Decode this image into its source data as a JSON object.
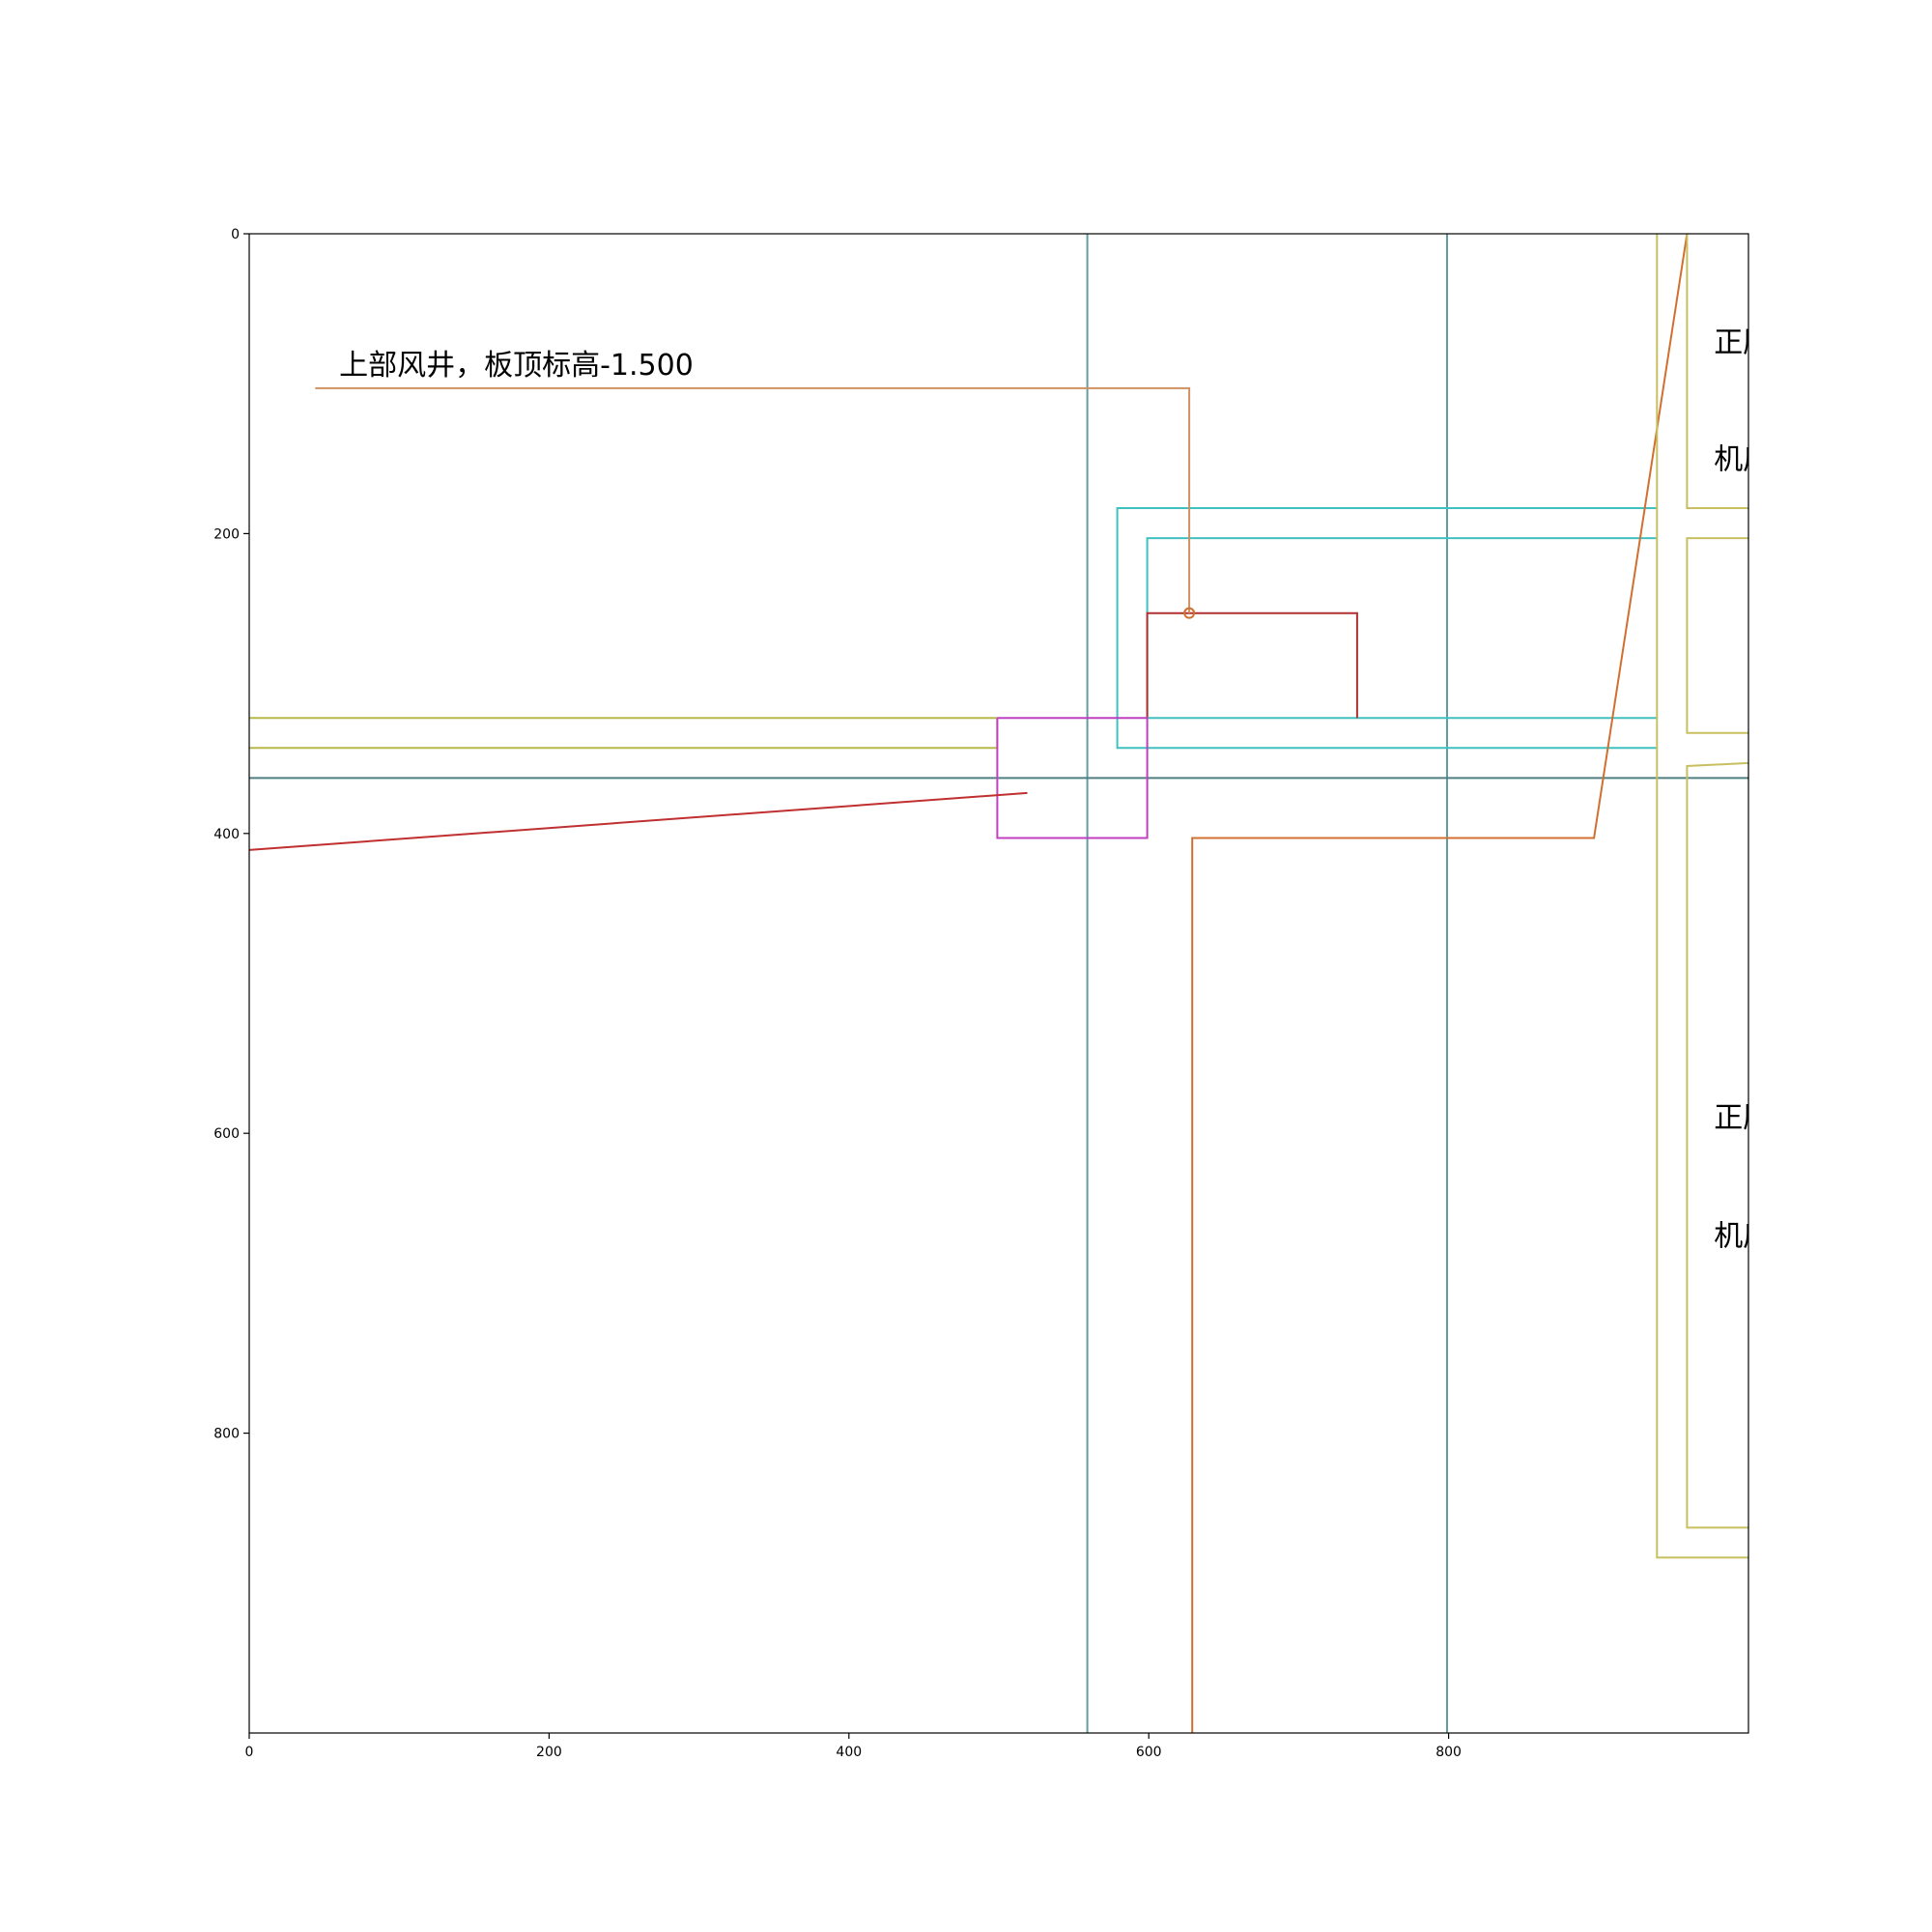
{
  "chart_data": {
    "type": "cad-drawing",
    "xlim": [
      0,
      1000
    ],
    "ylim": [
      1000,
      0
    ],
    "x_ticks": [
      {
        "value": 0,
        "label": "0"
      },
      {
        "value": 200,
        "label": "200"
      },
      {
        "value": 400,
        "label": "400"
      },
      {
        "value": 600,
        "label": "600"
      },
      {
        "value": 800,
        "label": "800"
      }
    ],
    "y_ticks": [
      {
        "value": 0,
        "label": "0"
      },
      {
        "value": 200,
        "label": "200"
      },
      {
        "value": 400,
        "label": "400"
      },
      {
        "value": 600,
        "label": "600"
      },
      {
        "value": 800,
        "label": "800"
      }
    ],
    "annotations": [
      {
        "name": "annotation-shaft-elevation",
        "text": "上部风井，板顶标高-1.500",
        "x": 60,
        "y": 80
      },
      {
        "name": "annotation-room-upper-1",
        "text": "正压送风机房",
        "x": 977,
        "y": 65
      },
      {
        "name": "annotation-room-upper-2",
        "text": "机房",
        "x": 977,
        "y": 143
      },
      {
        "name": "annotation-room-lower-1",
        "text": "正压送风机房",
        "x": 977,
        "y": 582
      },
      {
        "name": "annotation-room-lower-2",
        "text": "机房",
        "x": 977,
        "y": 661
      }
    ],
    "lines": [
      {
        "name": "grid-line-vertical-a",
        "color": "#5f9ea0",
        "points": [
          [
            559,
            0
          ],
          [
            559,
            1000
          ]
        ]
      },
      {
        "name": "grid-line-vertical-b",
        "color": "#5f9ea0",
        "points": [
          [
            799,
            0
          ],
          [
            799,
            1000
          ]
        ]
      },
      {
        "name": "grid-line-horizontal",
        "color": "#4f7f80",
        "points": [
          [
            0,
            363
          ],
          [
            1000,
            363
          ]
        ]
      },
      {
        "name": "wall-line-left-upper",
        "color": "#b8b84a",
        "points": [
          [
            0,
            323
          ],
          [
            499,
            323
          ]
        ]
      },
      {
        "name": "wall-line-left-lower",
        "color": "#b8b84a",
        "points": [
          [
            0,
            343
          ],
          [
            499,
            343
          ]
        ]
      },
      {
        "name": "wall-line-left-join",
        "color": "#b8b84a",
        "points": [
          [
            499,
            323
          ],
          [
            499,
            343
          ]
        ]
      },
      {
        "name": "duct-outer-outline",
        "color": "#40c0c0",
        "points": [
          [
            939,
            183
          ],
          [
            579,
            183
          ],
          [
            579,
            343
          ],
          [
            939,
            343
          ]
        ]
      },
      {
        "name": "duct-inner-outline",
        "color": "#40c0c0",
        "points": [
          [
            939,
            203
          ],
          [
            599,
            203
          ],
          [
            599,
            323
          ],
          [
            939,
            323
          ]
        ]
      },
      {
        "name": "shaft-box-outline",
        "color": "#b03030",
        "points": [
          [
            599,
            323
          ],
          [
            599,
            253
          ],
          [
            739,
            253
          ],
          [
            739,
            323
          ]
        ]
      },
      {
        "name": "magenta-box-outline",
        "color": "#c040c0",
        "points": [
          [
            499,
            323
          ],
          [
            599,
            323
          ],
          [
            599,
            403
          ],
          [
            499,
            403
          ],
          [
            499,
            323
          ]
        ]
      },
      {
        "name": "leader-line-shaft",
        "color": "#d09060",
        "points": [
          [
            44,
            103
          ],
          [
            627,
            103
          ],
          [
            627,
            253
          ]
        ]
      },
      {
        "name": "leader-line-room",
        "color": "#d07030",
        "points": [
          [
            629,
            1000
          ],
          [
            629,
            403
          ],
          [
            897,
            403
          ],
          [
            959,
            0
          ]
        ]
      },
      {
        "name": "red-slant-line",
        "color": "#c03030",
        "points": [
          [
            0,
            411
          ],
          [
            519,
            373
          ]
        ]
      },
      {
        "name": "room-wall-outer",
        "color": "#c8c060",
        "points": [
          [
            939,
            0
          ],
          [
            939,
            883
          ],
          [
            1000,
            883
          ]
        ]
      },
      {
        "name": "room-upper-inner",
        "color": "#c8c060",
        "points": [
          [
            959,
            0
          ],
          [
            959,
            183
          ],
          [
            1000,
            183
          ]
        ]
      },
      {
        "name": "room-middle-inner",
        "color": "#c8c060",
        "points": [
          [
            1000,
            203
          ],
          [
            959,
            203
          ],
          [
            959,
            333
          ],
          [
            1000,
            333
          ]
        ]
      },
      {
        "name": "room-lower-inner",
        "color": "#c8c060",
        "points": [
          [
            1000,
            353
          ],
          [
            959,
            355
          ],
          [
            959,
            863
          ],
          [
            1000,
            863
          ]
        ]
      }
    ],
    "markers": [
      {
        "name": "leader-end-marker",
        "color": "#d07030",
        "x": 627,
        "y": 253
      }
    ]
  }
}
